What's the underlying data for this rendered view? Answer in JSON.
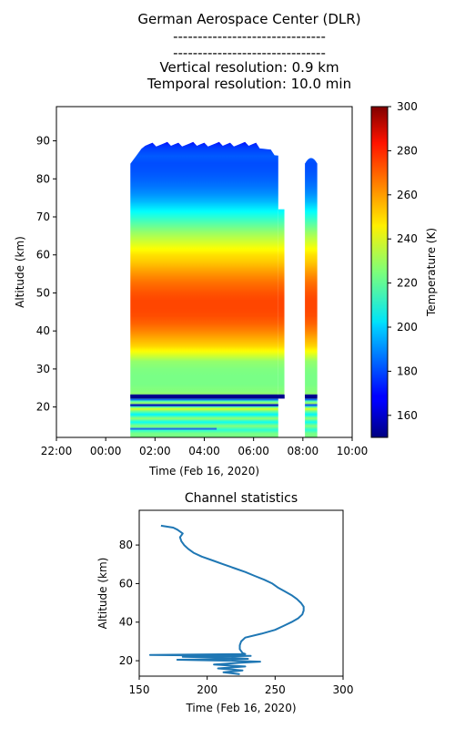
{
  "header": {
    "title": "German Aerospace Center (DLR)",
    "sep1": "-------------------------------",
    "sep2": "-------------------------------",
    "vres": "Vertical resolution: 0.9 km",
    "tres": "Temporal resolution: 10.0 min"
  },
  "chart_data": [
    {
      "type": "heatmap",
      "title": "",
      "xlabel": "Time (Feb 16, 2020)",
      "ylabel": "Altitude (km)",
      "x_ticks": [
        "22:00",
        "00:00",
        "02:00",
        "04:00",
        "06:00",
        "08:00",
        "10:00"
      ],
      "y_ticks": [
        20,
        30,
        40,
        50,
        60,
        70,
        80,
        90
      ],
      "xlim": [
        "2020-02-15 22:00",
        "2020-02-16 10:00"
      ],
      "ylim": [
        12,
        99
      ],
      "colorbar": {
        "label": "Temperature (K)",
        "range": [
          150,
          300
        ],
        "ticks": [
          160,
          180,
          200,
          220,
          240,
          260,
          280,
          300
        ],
        "colormap": "jet"
      },
      "data_segments": [
        {
          "start": "01:00",
          "end": "07:00"
        },
        {
          "start": "07:00",
          "end": "07:15"
        },
        {
          "start": "08:05",
          "end": "08:35"
        }
      ],
      "profile": {
        "altitude_km": [
          13,
          14,
          15,
          16,
          17,
          18,
          19,
          19.5,
          20,
          20.5,
          21,
          21.5,
          22,
          22.5,
          23,
          23.5,
          24,
          26,
          28,
          30,
          32,
          34,
          36,
          38,
          40,
          42,
          44,
          46,
          48,
          50,
          52,
          54,
          56,
          58,
          60,
          62,
          64,
          66,
          68,
          70,
          72,
          74,
          76,
          78,
          80,
          82,
          84,
          86,
          88,
          89,
          90
        ],
        "temperature_K": [
          224,
          212,
          226,
          208,
          228,
          205,
          225,
          239,
          218,
          178,
          230,
          218,
          182,
          232,
          158,
          228,
          226,
          224,
          224,
          225,
          228,
          240,
          250,
          256,
          262,
          267,
          270,
          271,
          271,
          269,
          266,
          262,
          257,
          252,
          248,
          242,
          235,
          228,
          220,
          212,
          204,
          196,
          190,
          186,
          183,
          181,
          180,
          182,
          178,
          175,
          166
        ]
      }
    },
    {
      "type": "line",
      "title": "Channel statistics",
      "xlabel": "Time (Feb 16, 2020)",
      "ylabel": "Altitude (km)",
      "xlim": [
        150,
        300
      ],
      "ylim": [
        12,
        98
      ],
      "x_ticks": [
        150,
        200,
        250,
        300
      ],
      "y_ticks": [
        20,
        40,
        60,
        80
      ],
      "series": [
        {
          "color": "#1f77b4",
          "y": [
            13,
            14,
            15,
            16,
            17,
            18,
            19,
            19.5,
            20,
            20.5,
            21,
            21.5,
            22,
            22.5,
            23,
            23.5,
            24,
            26,
            28,
            30,
            32,
            34,
            36,
            38,
            40,
            42,
            44,
            46,
            48,
            50,
            52,
            54,
            56,
            58,
            60,
            62,
            64,
            66,
            68,
            70,
            72,
            74,
            76,
            78,
            80,
            82,
            84,
            86,
            88,
            89,
            90
          ],
          "x": [
            224,
            212,
            226,
            208,
            228,
            205,
            225,
            239,
            218,
            178,
            230,
            218,
            182,
            232,
            158,
            228,
            226,
            224,
            224,
            225,
            228,
            240,
            250,
            256,
            262,
            267,
            270,
            271,
            271,
            269,
            266,
            262,
            257,
            252,
            248,
            242,
            235,
            228,
            220,
            212,
            204,
            196,
            190,
            186,
            183,
            181,
            180,
            182,
            178,
            175,
            166
          ]
        }
      ]
    }
  ]
}
